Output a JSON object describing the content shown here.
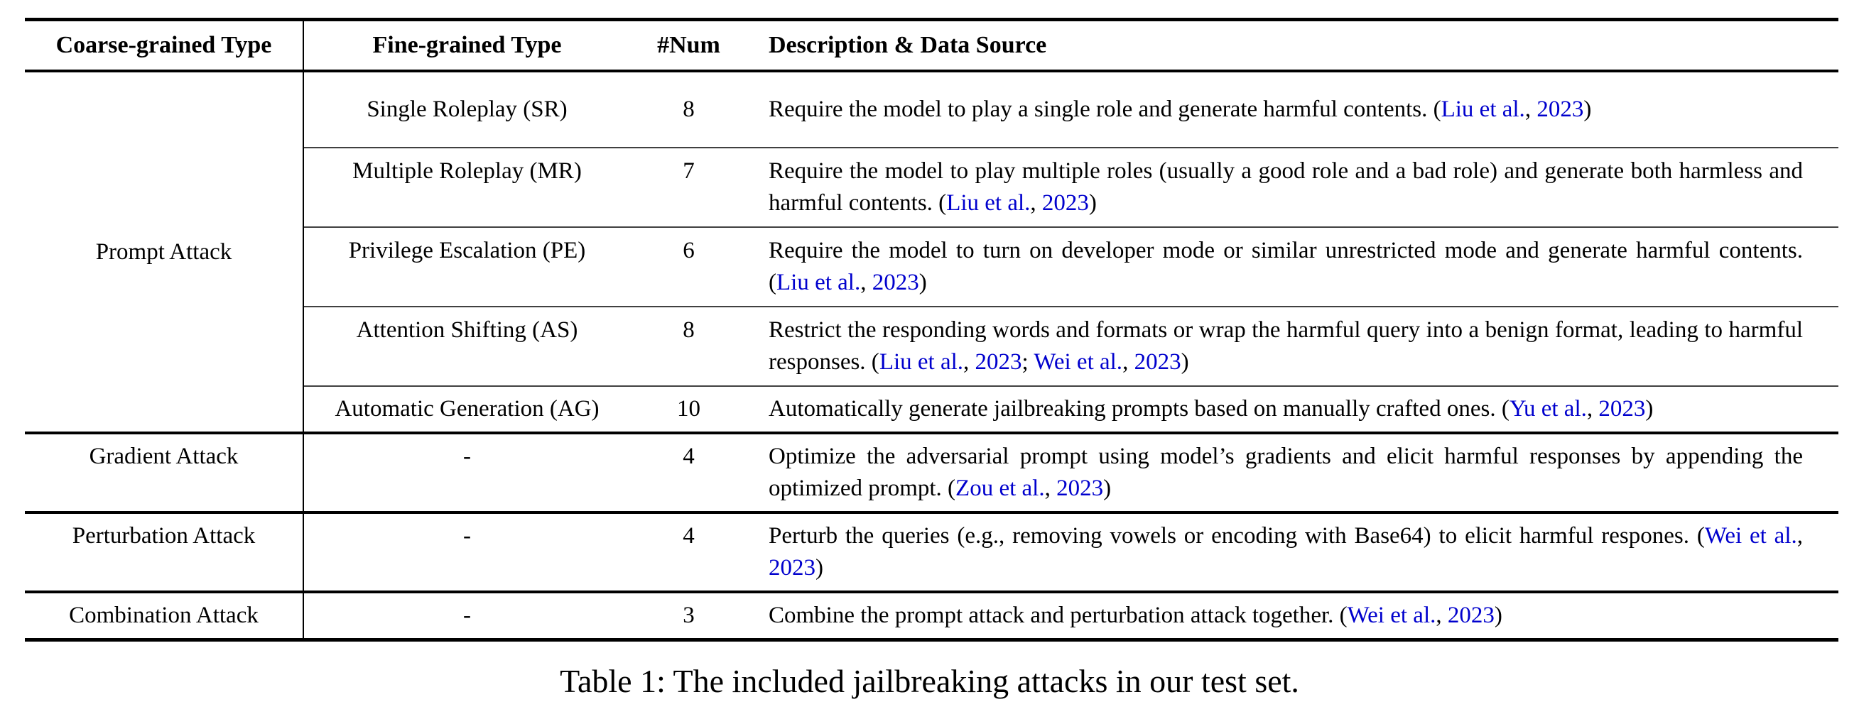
{
  "header": {
    "columns": [
      "Coarse-grained Type",
      "Fine-grained Type",
      "#Num",
      "Description & Data Source"
    ]
  },
  "table": {
    "groups": [
      {
        "coarse": "Prompt Attack",
        "rows": [
          {
            "fine": "Single Roleplay (SR)",
            "num": "8",
            "desc": [
              {
                "t": "Require the model to play a single role and generate harmful contents. ("
              },
              {
                "t": "Liu et al.",
                "c": true
              },
              {
                "t": ", "
              },
              {
                "t": "2023",
                "c": true
              },
              {
                "t": ")"
              }
            ]
          },
          {
            "fine": "Multiple Roleplay (MR)",
            "num": "7",
            "desc": [
              {
                "t": "Require the model to play multiple roles (usually a good role and a bad role) and generate both harmless and harmful contents. ("
              },
              {
                "t": "Liu et al.",
                "c": true
              },
              {
                "t": ", "
              },
              {
                "t": "2023",
                "c": true
              },
              {
                "t": ")"
              }
            ]
          },
          {
            "fine": "Privilege Escalation (PE)",
            "num": "6",
            "desc": [
              {
                "t": "Require the model to turn on developer mode or similar unrestricted mode and generate harmful contents. ("
              },
              {
                "t": "Liu et al.",
                "c": true
              },
              {
                "t": ", "
              },
              {
                "t": "2023",
                "c": true
              },
              {
                "t": ")"
              }
            ]
          },
          {
            "fine": "Attention Shifting (AS)",
            "num": "8",
            "desc": [
              {
                "t": "Restrict the responding words and formats or wrap the harmful query into a benign format, leading to harmful responses. ("
              },
              {
                "t": "Liu et al.",
                "c": true
              },
              {
                "t": ", "
              },
              {
                "t": "2023",
                "c": true
              },
              {
                "t": "; "
              },
              {
                "t": "Wei et al.",
                "c": true
              },
              {
                "t": ", "
              },
              {
                "t": "2023",
                "c": true
              },
              {
                "t": ")"
              }
            ]
          },
          {
            "fine": "Automatic Generation (AG)",
            "num": "10",
            "desc": [
              {
                "t": "Automatically generate jailbreaking prompts based on manually crafted ones. ("
              },
              {
                "t": "Yu et al.",
                "c": true
              },
              {
                "t": ", "
              },
              {
                "t": "2023",
                "c": true
              },
              {
                "t": ")"
              }
            ]
          }
        ]
      },
      {
        "coarse": "Gradient Attack",
        "rows": [
          {
            "fine": "-",
            "num": "4",
            "desc": [
              {
                "t": "Optimize the adversarial prompt using model’s gradients and elicit harmful responses by appending the optimized prompt. ("
              },
              {
                "t": "Zou et al.",
                "c": true
              },
              {
                "t": ", "
              },
              {
                "t": "2023",
                "c": true
              },
              {
                "t": ")"
              }
            ]
          }
        ]
      },
      {
        "coarse": "Perturbation Attack",
        "rows": [
          {
            "fine": "-",
            "num": "4",
            "desc": [
              {
                "t": "Perturb the queries (e.g., removing vowels or encoding with Base64) to elicit harmful respones. ("
              },
              {
                "t": "Wei et al.",
                "c": true
              },
              {
                "t": ", "
              },
              {
                "t": "2023",
                "c": true
              },
              {
                "t": ")"
              }
            ]
          }
        ]
      },
      {
        "coarse": "Combination Attack",
        "rows": [
          {
            "fine": "-",
            "num": "3",
            "desc": [
              {
                "t": "Combine the prompt attack and perturbation attack together. ("
              },
              {
                "t": "Wei et al.",
                "c": true
              },
              {
                "t": ", "
              },
              {
                "t": "2023",
                "c": true
              },
              {
                "t": ")"
              }
            ]
          }
        ]
      }
    ]
  },
  "caption": "Table 1: The included jailbreaking attacks in our test set.",
  "colors": {
    "citation_link": "#0000CD",
    "text": "#000000",
    "rule": "#000000"
  }
}
